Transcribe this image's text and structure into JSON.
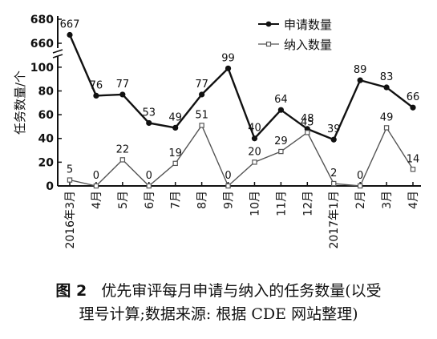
{
  "chart_data": {
    "type": "line",
    "categories": [
      "2016年3月",
      "4月",
      "5月",
      "6月",
      "7月",
      "8月",
      "9月",
      "10月",
      "11月",
      "12月",
      "2017年1月",
      "2月",
      "3月",
      "4月"
    ],
    "series": [
      {
        "name": "申请数量",
        "values": [
          667,
          76,
          77,
          53,
          49,
          77,
          99,
          40,
          64,
          48,
          39,
          89,
          83,
          66
        ],
        "marker": "filled-circle",
        "color": "#111111"
      },
      {
        "name": "纳入数量",
        "values": [
          5,
          0,
          22,
          0,
          19,
          51,
          0,
          20,
          29,
          45,
          2,
          0,
          49,
          14
        ],
        "marker": "open-square",
        "color": "#555555"
      }
    ],
    "ylabel": "任务数量/个",
    "yticks_lower": [
      0,
      20,
      40,
      60,
      80,
      100
    ],
    "yticks_upper": [
      660,
      680
    ],
    "ylim_lower": [
      0,
      108
    ],
    "ylim_upper": [
      656,
      682
    ],
    "axis_break": true,
    "legend_position": "top-right"
  },
  "caption": {
    "figure_label": "图 2",
    "line1": "优先审评每月申请与纳入的任务数量(以受",
    "line2": "理号计算;数据来源: 根据 CDE 网站整理)"
  }
}
